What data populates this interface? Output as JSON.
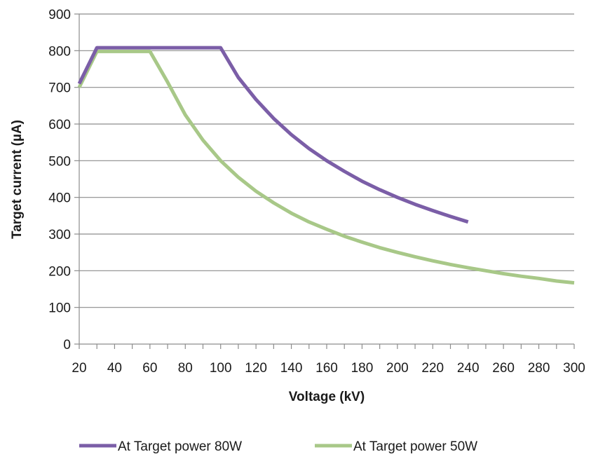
{
  "chart_data": {
    "type": "line",
    "title": "",
    "xlabel": "Voltage (kV)",
    "ylabel": "Target current (µA)",
    "xlim": [
      20,
      300
    ],
    "ylim": [
      0,
      900
    ],
    "x_ticks": [
      20,
      40,
      60,
      80,
      100,
      120,
      140,
      160,
      180,
      200,
      220,
      240,
      260,
      280,
      300
    ],
    "y_ticks": [
      0,
      100,
      200,
      300,
      400,
      500,
      600,
      700,
      800,
      900
    ],
    "grid": "horizontal",
    "legend_position": "bottom",
    "series": [
      {
        "name": "At Target power 80W",
        "color": "#7b5ea7",
        "points": [
          [
            20,
            710
          ],
          [
            30,
            808
          ],
          [
            100,
            808
          ],
          [
            110,
            727
          ],
          [
            120,
            667
          ],
          [
            130,
            615
          ],
          [
            140,
            571
          ],
          [
            150,
            533
          ],
          [
            160,
            500
          ],
          [
            170,
            471
          ],
          [
            180,
            444
          ],
          [
            190,
            421
          ],
          [
            200,
            400
          ],
          [
            210,
            381
          ],
          [
            220,
            364
          ],
          [
            230,
            348
          ],
          [
            240,
            333
          ]
        ]
      },
      {
        "name": "At Target power 50W",
        "color": "#a8c888",
        "points": [
          [
            20,
            700
          ],
          [
            30,
            798
          ],
          [
            60,
            798
          ],
          [
            70,
            714
          ],
          [
            80,
            625
          ],
          [
            90,
            556
          ],
          [
            100,
            500
          ],
          [
            110,
            455
          ],
          [
            120,
            417
          ],
          [
            130,
            385
          ],
          [
            140,
            357
          ],
          [
            150,
            333
          ],
          [
            160,
            313
          ],
          [
            170,
            294
          ],
          [
            180,
            278
          ],
          [
            190,
            263
          ],
          [
            200,
            250
          ],
          [
            210,
            238
          ],
          [
            220,
            227
          ],
          [
            230,
            217
          ],
          [
            240,
            208
          ],
          [
            250,
            200
          ],
          [
            260,
            192
          ],
          [
            270,
            185
          ],
          [
            280,
            179
          ],
          [
            290,
            172
          ],
          [
            300,
            167
          ]
        ]
      }
    ]
  }
}
